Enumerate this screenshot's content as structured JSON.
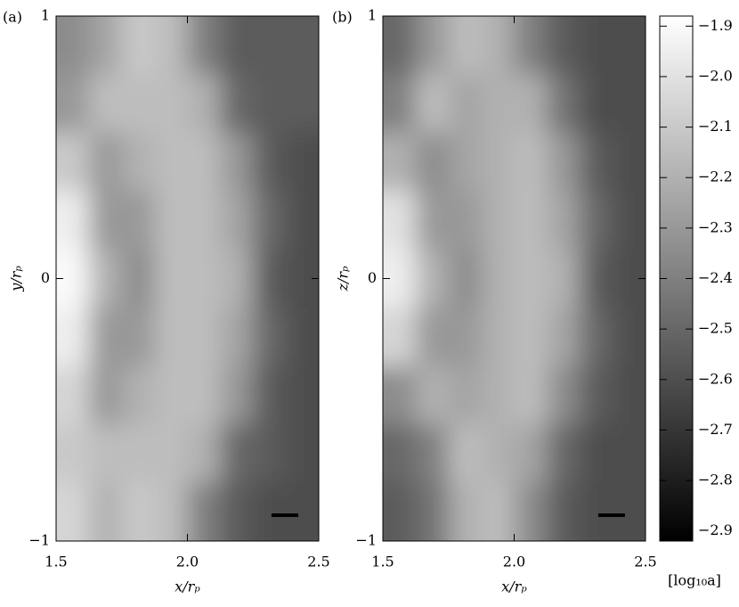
{
  "chart_data": [
    {
      "type": "heatmap",
      "label": "(a)",
      "xlabel": "x/rₚ",
      "ylabel": "y/rₚ",
      "xlim": [
        1.5,
        2.5
      ],
      "xticks": [
        1.5,
        {
          "value": 2,
          "label": "2.0"
        },
        2.5
      ],
      "ylim": [
        -1,
        1
      ],
      "yticks": [
        {
          "value": -1,
          "label": "−1"
        },
        0,
        1
      ],
      "z": [
        [
          -2.35,
          -2.25,
          -2.1,
          -2.15,
          -2.4,
          -2.55,
          -2.55,
          -2.55
        ],
        [
          -2.3,
          -2.15,
          -2.15,
          -2.15,
          -2.2,
          -2.5,
          -2.55,
          -2.55
        ],
        [
          -2.1,
          -2.3,
          -2.2,
          -2.15,
          -2.15,
          -2.3,
          -2.55,
          -2.6
        ],
        [
          -1.95,
          -2.3,
          -2.3,
          -2.15,
          -2.15,
          -2.25,
          -2.5,
          -2.6
        ],
        [
          -1.9,
          -2.2,
          -2.35,
          -2.15,
          -2.15,
          -2.2,
          -2.55,
          -2.6
        ],
        [
          -1.95,
          -2.3,
          -2.3,
          -2.15,
          -2.15,
          -2.25,
          -2.5,
          -2.6
        ],
        [
          -2.05,
          -2.3,
          -2.2,
          -2.15,
          -2.15,
          -2.3,
          -2.55,
          -2.6
        ],
        [
          -2.1,
          -2.15,
          -2.15,
          -2.15,
          -2.2,
          -2.5,
          -2.55,
          -2.6
        ],
        [
          -2.05,
          -2.2,
          -2.1,
          -2.15,
          -2.4,
          -2.55,
          -2.6,
          -2.6
        ]
      ]
    },
    {
      "type": "heatmap",
      "label": "(b)",
      "xlabel": "x/rₚ",
      "ylabel": "z/rₚ",
      "xlim": [
        1.5,
        2.5
      ],
      "xticks": [
        1.5,
        {
          "value": 2,
          "label": "2.0"
        },
        2.5
      ],
      "ylim": [
        -1,
        1
      ],
      "yticks": [
        {
          "value": -1,
          "label": "−1"
        },
        0,
        1
      ],
      "z": [
        [
          -2.5,
          -2.3,
          -2.15,
          -2.2,
          -2.4,
          -2.55,
          -2.6,
          -2.6
        ],
        [
          -2.4,
          -2.15,
          -2.25,
          -2.2,
          -2.2,
          -2.45,
          -2.6,
          -2.6
        ],
        [
          -2.2,
          -2.35,
          -2.25,
          -2.2,
          -2.15,
          -2.3,
          -2.55,
          -2.6
        ],
        [
          -2.0,
          -2.3,
          -2.3,
          -2.2,
          -2.15,
          -2.25,
          -2.5,
          -2.6
        ],
        [
          -1.95,
          -2.2,
          -2.35,
          -2.2,
          -2.15,
          -2.2,
          -2.55,
          -2.6
        ],
        [
          -2.05,
          -2.3,
          -2.3,
          -2.2,
          -2.15,
          -2.25,
          -2.5,
          -2.6
        ],
        [
          -2.35,
          -2.2,
          -2.25,
          -2.2,
          -2.15,
          -2.35,
          -2.55,
          -2.6
        ],
        [
          -2.5,
          -2.4,
          -2.15,
          -2.2,
          -2.25,
          -2.5,
          -2.6,
          -2.6
        ],
        [
          -2.55,
          -2.45,
          -2.2,
          -2.15,
          -2.35,
          -2.55,
          -2.6,
          -2.6
        ]
      ]
    }
  ],
  "colorbar": {
    "label": "[log₁₀a]",
    "colormap": "gray",
    "lim": [
      -2.92,
      -1.88
    ],
    "ticks": [
      {
        "value": -1.9,
        "label": "−1.9"
      },
      {
        "value": -2.0,
        "label": "−2.0"
      },
      {
        "value": -2.1,
        "label": "−2.1"
      },
      {
        "value": -2.2,
        "label": "−2.2"
      },
      {
        "value": -2.3,
        "label": "−2.3"
      },
      {
        "value": -2.4,
        "label": "−2.4"
      },
      {
        "value": -2.5,
        "label": "−2.5"
      },
      {
        "value": -2.6,
        "label": "−2.6"
      },
      {
        "value": -2.7,
        "label": "−2.7"
      },
      {
        "value": -2.8,
        "label": "−2.8"
      },
      {
        "value": -2.9,
        "label": "−2.9"
      }
    ]
  }
}
